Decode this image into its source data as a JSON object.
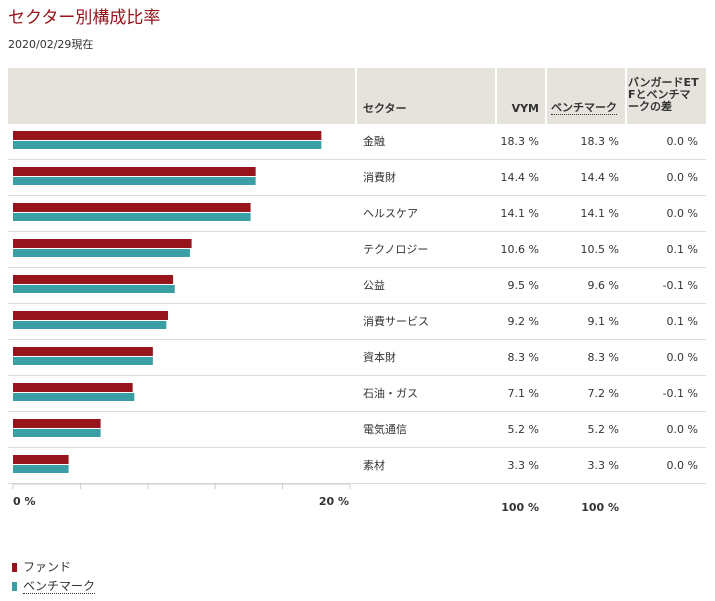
{
  "page": {
    "title": "セクター別構成比率",
    "as_of": "2020/02/29現在"
  },
  "table": {
    "headers": {
      "sector": "セクター",
      "vym": "VYM",
      "benchmark": "ベンチマーク",
      "diff": "バンガードETFとベンチマークの差"
    },
    "totals": {
      "vym": "100 %",
      "benchmark": "100 %"
    }
  },
  "colors": {
    "fund": "#96151d",
    "benchmark": "#3a9ea5"
  },
  "chart_data": {
    "type": "bar",
    "orientation": "horizontal",
    "categories": [
      "金融",
      "消費財",
      "ヘルスケア",
      "テクノロジー",
      "公益",
      "消費サービス",
      "資本財",
      "石油・ガス",
      "電気通信",
      "素材"
    ],
    "series": [
      {
        "name": "ファンド",
        "values": [
          18.3,
          14.4,
          14.1,
          10.6,
          9.5,
          9.2,
          8.3,
          7.1,
          5.2,
          3.3
        ]
      },
      {
        "name": "ベンチマーク",
        "values": [
          18.3,
          14.4,
          14.1,
          10.5,
          9.6,
          9.1,
          8.3,
          7.2,
          5.2,
          3.3
        ]
      }
    ],
    "vym_labels": [
      "18.3 %",
      "14.4 %",
      "14.1 %",
      "10.6 %",
      "9.5 %",
      "9.2 %",
      "8.3 %",
      "7.1 %",
      "5.2 %",
      "3.3 %"
    ],
    "benchmark_labels": [
      "18.3 %",
      "14.4 %",
      "14.1 %",
      "10.5 %",
      "9.6 %",
      "9.1 %",
      "8.3 %",
      "7.2 %",
      "5.2 %",
      "3.3 %"
    ],
    "diff_labels": [
      "0.0 %",
      "0.0 %",
      "0.0 %",
      "0.1 %",
      "-0.1 %",
      "0.1 %",
      "0.0 %",
      "-0.1 %",
      "0.0 %",
      "0.0 %"
    ],
    "xlim": [
      0,
      20
    ],
    "x_tick_labels": [
      "0 %",
      "20 %"
    ],
    "legend": [
      "ファンド",
      "ベンチマーク"
    ],
    "legend_position": "bottom-left"
  }
}
